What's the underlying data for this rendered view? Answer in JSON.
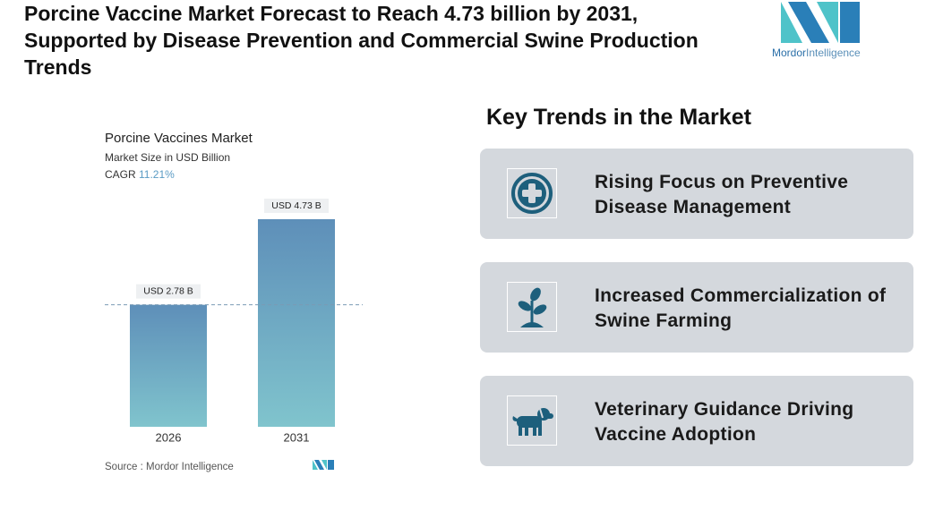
{
  "header": {
    "title": "Porcine Vaccine Market Forecast to Reach 4.73 billion by 2031, Supported by Disease Prevention and Commercial Swine Production Trends"
  },
  "logo": {
    "text_1": "Mordor",
    "text_2": "Intelligence"
  },
  "chart_data": {
    "type": "bar",
    "title": "Porcine Vaccines Market",
    "subtitle": "Market Size in USD Billion",
    "cagr_label": "CAGR",
    "cagr": "11.21%",
    "categories": [
      "2026",
      "2031"
    ],
    "values": [
      2.78,
      4.73
    ],
    "value_labels": [
      "USD 2.78 B",
      "USD 4.73 B"
    ],
    "source": "Source :  Mordor Intelligence"
  },
  "trends": {
    "heading": "Key Trends in the Market",
    "items": [
      "Rising Focus on Preventive Disease Management",
      "Increased Commercialization of Swine Farming",
      "Veterinary Guidance Driving Vaccine Adoption"
    ]
  }
}
